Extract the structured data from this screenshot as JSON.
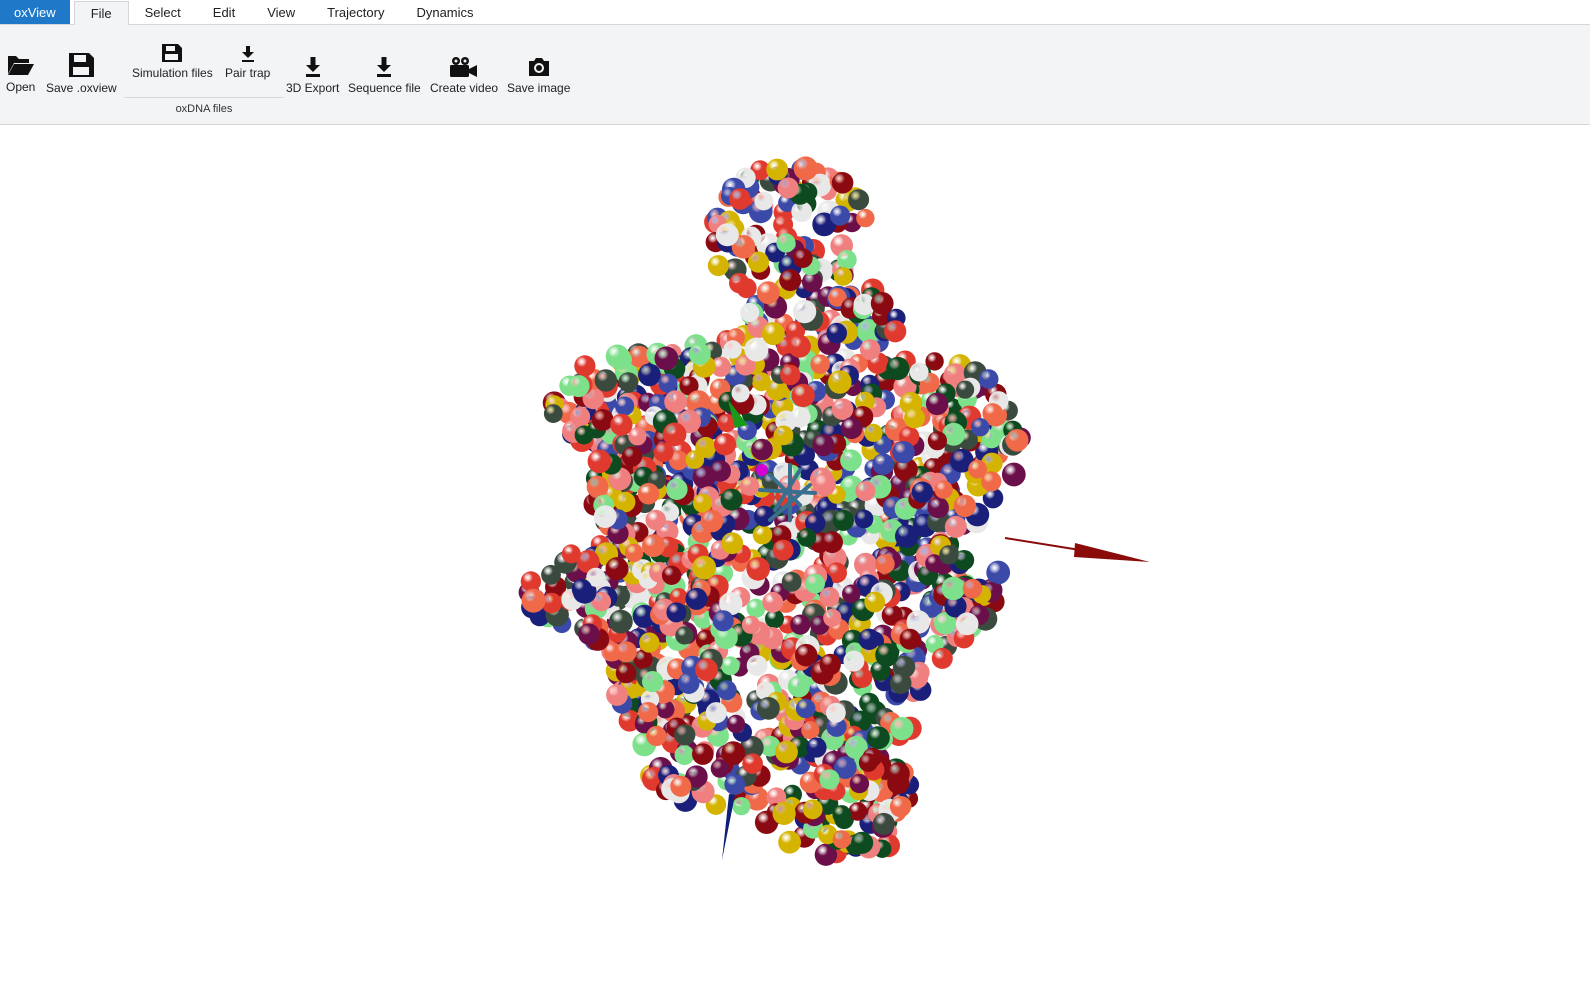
{
  "menubar": {
    "app_name": "oxView",
    "tabs": [
      {
        "label": "File",
        "active": true
      },
      {
        "label": "Select",
        "active": false
      },
      {
        "label": "Edit",
        "active": false
      },
      {
        "label": "View",
        "active": false
      },
      {
        "label": "Trajectory",
        "active": false
      },
      {
        "label": "Dynamics",
        "active": false
      }
    ]
  },
  "ribbon": {
    "open": {
      "label": "Open",
      "icon": "folder-open-icon"
    },
    "save_oxview": {
      "label": "Save .oxview",
      "icon": "save-icon"
    },
    "simulation_files": {
      "label": "Simulation files",
      "icon": "save-icon"
    },
    "pair_trap": {
      "label": "Pair trap",
      "icon": "download-icon"
    },
    "group_label": "oxDNA files",
    "export_3d": {
      "label": "3D Export",
      "icon": "download-icon"
    },
    "sequence_file": {
      "label": "Sequence file",
      "icon": "download-icon"
    },
    "create_video": {
      "label": "Create video",
      "icon": "video-camera-icon"
    },
    "save_image": {
      "label": "Save image",
      "icon": "camera-icon"
    }
  },
  "scene": {
    "nucleotide_colors": [
      "#e03a2f",
      "#f06a4a",
      "#8b0a12",
      "#1a1f7a",
      "#3b4aa8",
      "#7de08a",
      "#e8e8e8",
      "#0d4a1f",
      "#3a4a3e",
      "#6b0f4a",
      "#f08080",
      "#d4b400"
    ],
    "axes": {
      "x_color": "#8b0a0a",
      "y_color": "#1a9a1a",
      "z_color": "#10207a"
    }
  },
  "colors": {
    "accent": "#1f78c8",
    "ribbon_bg": "#f3f4f6"
  }
}
